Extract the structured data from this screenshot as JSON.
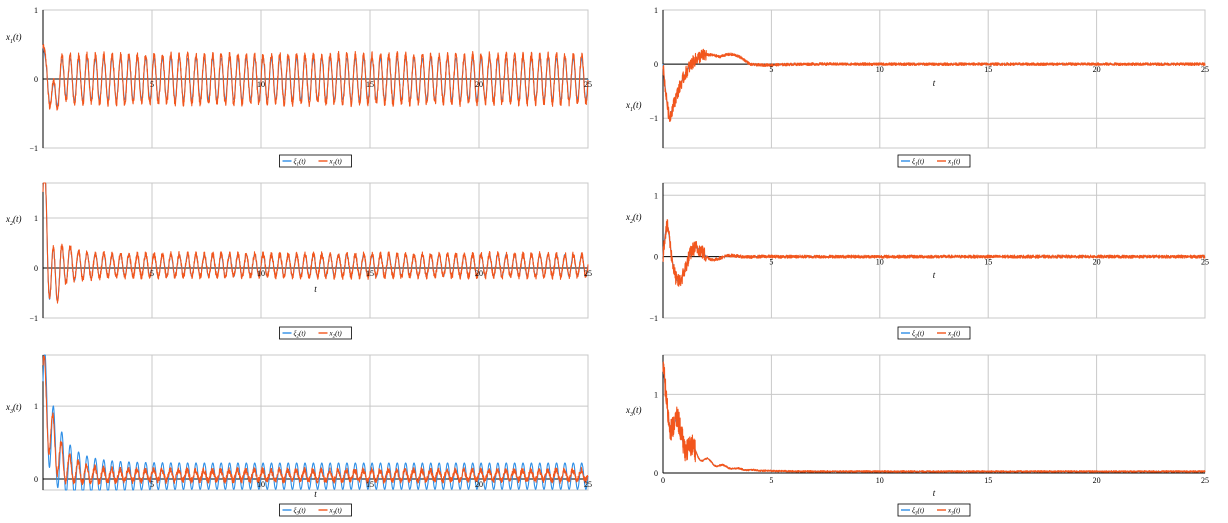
{
  "colors": {
    "xi": "#2f8fe6",
    "x": "#f2561d",
    "grid": "#c8c8c8",
    "axis": "#000000"
  },
  "chart_data": [
    {
      "type": "line",
      "column": "left",
      "row": 1,
      "ylabel": "x_1(t)",
      "xlabel": "",
      "xlim": [
        0,
        25
      ],
      "ylim": [
        -1,
        1
      ],
      "xticks": [
        "5",
        "10",
        "15",
        "20",
        "25"
      ],
      "yticks": [
        "-1",
        "0",
        "1"
      ],
      "series": [
        {
          "name": "ξ_1(t)",
          "values": "sustained oscillation, amplitude ≈ 0.35, ≈ 2.6 cycles per unit t"
        },
        {
          "name": "x_1(t)",
          "values": "tracks ξ_1 with additive noise"
        }
      ],
      "legend": [
        "ξ_1(t)",
        "x_1(t)"
      ],
      "legend_position": "bottom-center"
    },
    {
      "type": "line",
      "column": "left",
      "row": 2,
      "ylabel": "x_2(t)",
      "xlabel": "t",
      "xlim": [
        0,
        25
      ],
      "ylim": [
        -1,
        1.7
      ],
      "xticks": [
        "5",
        "10",
        "15",
        "20",
        "25"
      ],
      "yticks": [
        "-1",
        "0",
        "1"
      ],
      "series": [
        {
          "name": "ξ_2(t)",
          "values": "decays from ≈1.7 to oscillation amplitude ≈ 0.25"
        },
        {
          "name": "x_2(t)",
          "values": "tracks ξ_2 with noise"
        }
      ],
      "legend": [
        "ξ_2(t)",
        "x_2(t)"
      ],
      "legend_position": "bottom-center"
    },
    {
      "type": "line",
      "column": "left",
      "row": 3,
      "ylabel": "x_3(t)",
      "xlabel": "t",
      "xlim": [
        0,
        25
      ],
      "ylim": [
        -0.15,
        1.7
      ],
      "xticks": [
        "5",
        "10",
        "15",
        "20",
        "25"
      ],
      "yticks": [
        "0",
        "1"
      ],
      "series": [
        {
          "name": "ξ_3(t)",
          "values": "oscillation about ≈0.05 with amplitude ≈0.2 after initial peak ≈1.5"
        },
        {
          "name": "x_3(t)",
          "values": "smaller oscillation ≈0.1 amplitude after initial peak ≈1.5"
        }
      ],
      "legend": [
        "ξ_3(t)",
        "x_3(t)"
      ],
      "legend_position": "bottom-center"
    },
    {
      "type": "line",
      "column": "right",
      "row": 1,
      "ylabel": "x_1(t)",
      "xlabel": "t",
      "xlim": [
        0,
        25
      ],
      "ylim": [
        -1.55,
        1
      ],
      "xticks": [
        "5",
        "10",
        "15",
        "20",
        "25"
      ],
      "yticks": [
        "-1",
        "0",
        "1"
      ],
      "series": [
        {
          "name": "ξ_1(t)",
          "values": "dips to ≈-1.5 near t=1, settles to 0 by t≈4"
        },
        {
          "name": "x_1(t)",
          "values": "tracks ξ_1 with noise"
        }
      ],
      "legend": [
        "ξ_1(t)",
        "x_1(t)"
      ],
      "legend_position": "bottom-center"
    },
    {
      "type": "line",
      "column": "right",
      "row": 2,
      "ylabel": "x_2(t)",
      "xlabel": "t",
      "xlim": [
        0,
        25
      ],
      "ylim": [
        -1,
        1.2
      ],
      "xticks": [
        "5",
        "10",
        "15",
        "20",
        "25"
      ],
      "yticks": [
        "-1",
        "0",
        "1"
      ],
      "series": [
        {
          "name": "ξ_2(t)",
          "values": "peak ≈1.1 near t=0.5, damped oscillation, settles to 0 by t≈4"
        },
        {
          "name": "x_2(t)",
          "values": "tracks ξ_2 with noise"
        }
      ],
      "legend": [
        "ξ_2(t)",
        "x_2(t)"
      ],
      "legend_position": "bottom-center"
    },
    {
      "type": "line",
      "column": "right",
      "row": 3,
      "ylabel": "x_3(t)",
      "xlabel": "t",
      "xlim": [
        0,
        25
      ],
      "ylim": [
        0,
        1.5
      ],
      "xticks": [
        "0",
        "5",
        "10",
        "15",
        "20",
        "25"
      ],
      "yticks": [
        "0",
        "1"
      ],
      "series": [
        {
          "name": "ξ_3(t)",
          "values": "starts ≈1.3, decays to 0 by t≈4"
        },
        {
          "name": "x_3(t)",
          "values": "tracks ξ_3 with noise"
        }
      ],
      "legend": [
        "ξ_3(t)",
        "x_3(t)"
      ],
      "legend_position": "bottom-center"
    }
  ]
}
